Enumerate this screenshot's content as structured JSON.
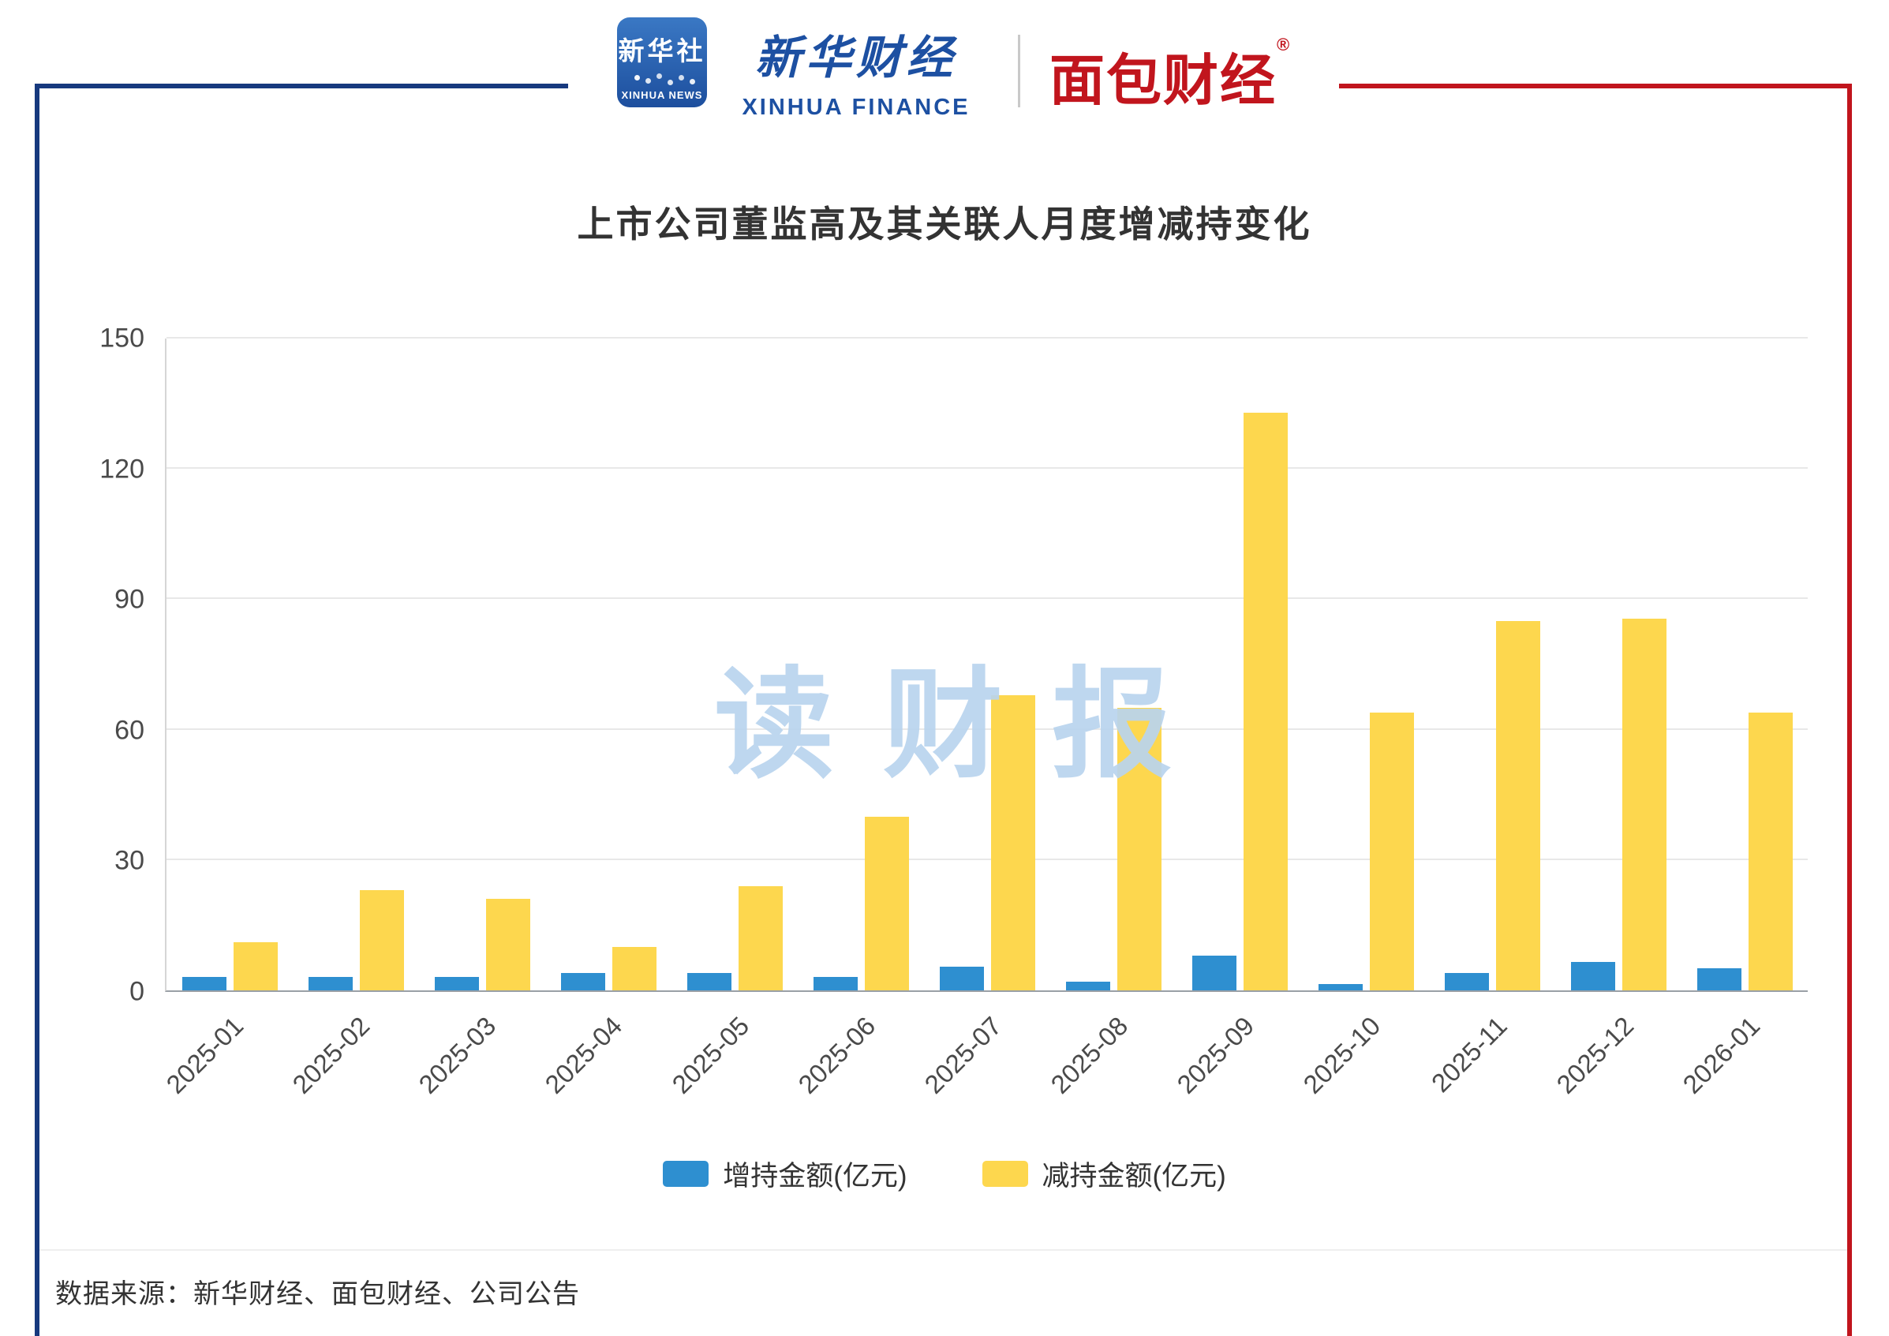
{
  "header": {
    "xinhua_news": {
      "cn": "新华社",
      "en": "XINHUA NEWS"
    },
    "xinhua_finance": {
      "cn": "新华财经",
      "en": "XINHUA FINANCE"
    },
    "mianbao_finance": {
      "cn": "面包财经",
      "reg": "®"
    }
  },
  "chart_data": {
    "type": "bar",
    "title": "上市公司董监高及其关联人月度增减持变化",
    "categories": [
      "2025-01",
      "2025-02",
      "2025-03",
      "2025-04",
      "2025-05",
      "2025-06",
      "2025-07",
      "2025-08",
      "2025-09",
      "2025-10",
      "2025-11",
      "2025-12",
      "2026-01"
    ],
    "series": [
      {
        "name": "增持金额(亿元)",
        "key": "increase",
        "color": "#2e8fd0",
        "values": [
          3,
          3,
          3,
          4,
          4,
          3,
          5.5,
          2,
          8,
          1.5,
          4,
          6.5,
          5
        ]
      },
      {
        "name": "减持金额(亿元)",
        "key": "decrease",
        "color": "#fdd74e",
        "values": [
          11,
          23,
          21,
          10,
          24,
          40,
          68,
          65,
          133,
          64,
          85,
          85.5,
          64
        ]
      }
    ],
    "xlabel": "",
    "ylabel": "",
    "ylim": [
      0,
      150
    ],
    "yticks": [
      0,
      30,
      60,
      90,
      120,
      150
    ],
    "grid": true,
    "legend_position": "bottom"
  },
  "watermark": "读财报",
  "footer": {
    "source": "数据来源：新华财经、面包财经、公司公告"
  },
  "colors": {
    "increase_bar": "#2e8fd0",
    "decrease_bar": "#fdd74e",
    "frame_blue": "#17397e",
    "frame_red": "#c1151d",
    "watermark": "#b9d4ee",
    "title_text": "#333333",
    "axis_text": "#4a4a4a"
  }
}
